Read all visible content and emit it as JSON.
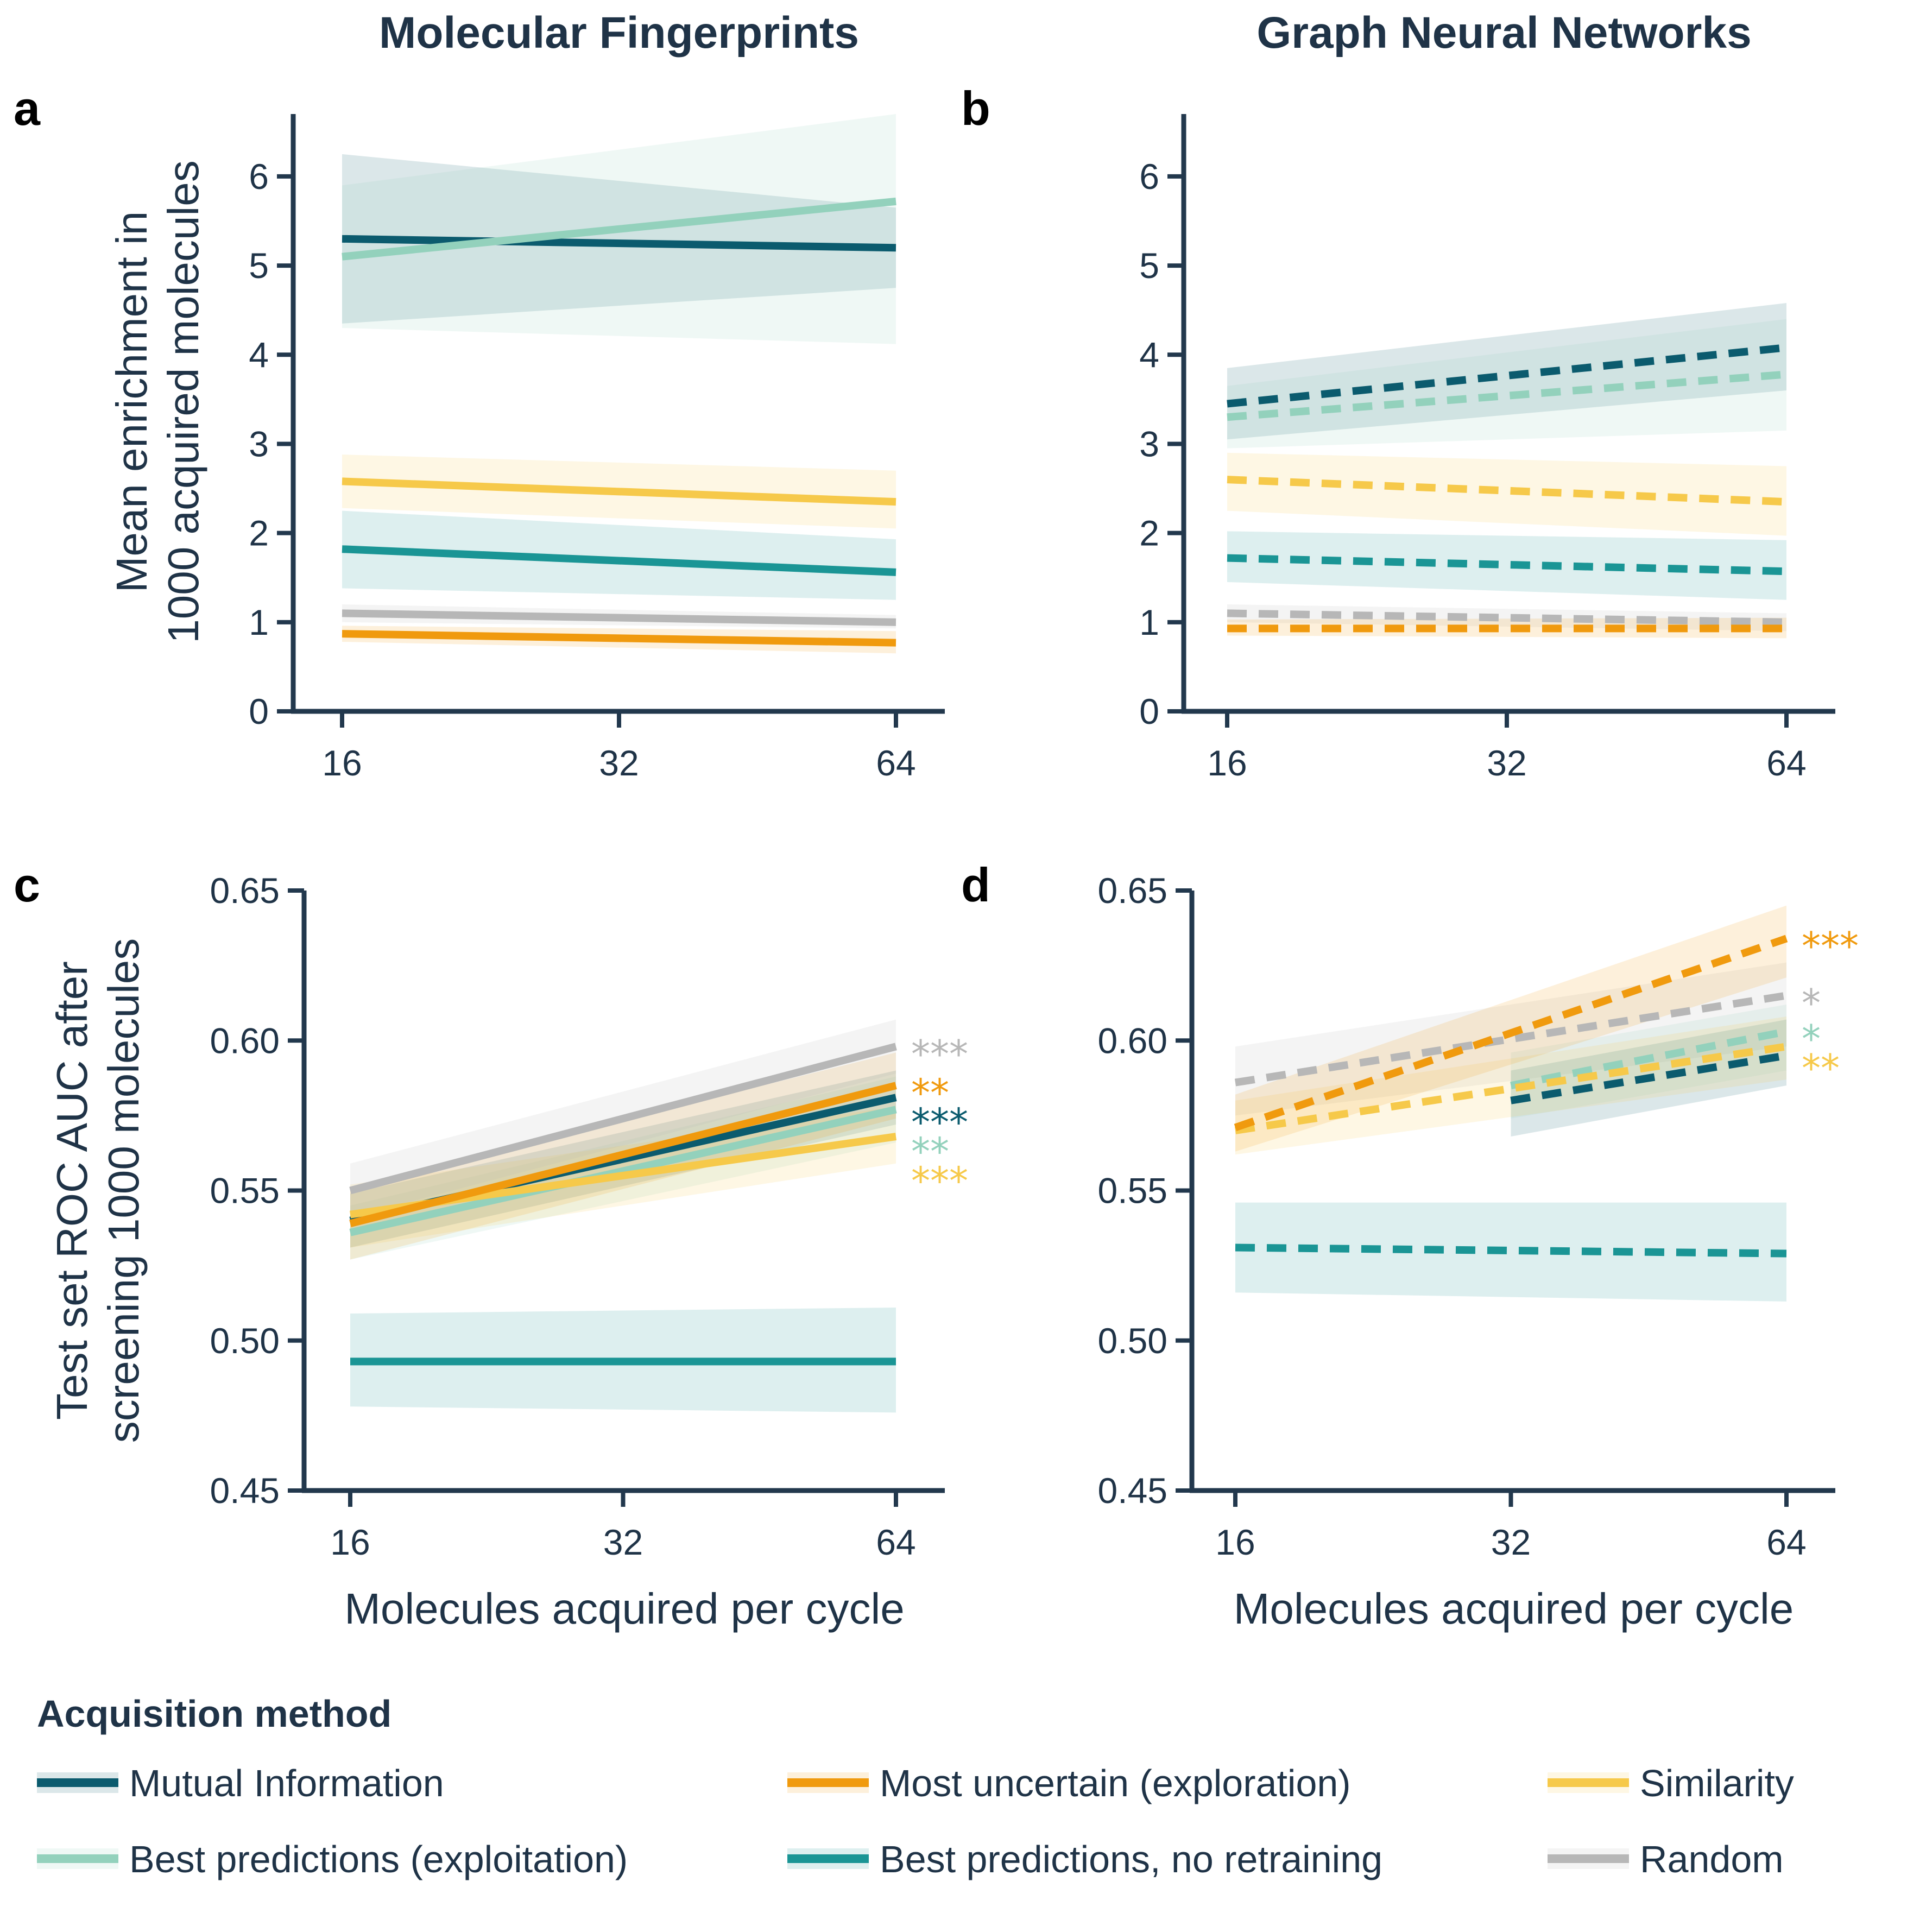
{
  "column_titles": [
    "Molecular Fingerprints",
    "Graph Neural Networks"
  ],
  "legend": {
    "title": "Acquisition method",
    "items": [
      {
        "key": "mi",
        "label": "Mutual Information",
        "color": "#0b5b6e"
      },
      {
        "key": "bp",
        "label": "Best predictions (exploitation)",
        "color": "#93d1bc"
      },
      {
        "key": "mu",
        "label": "Most uncertain (exploration)",
        "color": "#f09a0e"
      },
      {
        "key": "bpnr",
        "label": "Best predictions, no retraining",
        "color": "#1a9595"
      },
      {
        "key": "sim",
        "label": "Similarity",
        "color": "#f6c94a"
      },
      {
        "key": "rand",
        "label": "Random",
        "color": "#b7b7b7"
      }
    ]
  },
  "chart_data": [
    {
      "panel": "a",
      "type": "line",
      "line_style": "solid",
      "title": "Molecular Fingerprints",
      "xlabel": "",
      "ylabel": [
        "Mean enrichment in",
        "1000 acquired molecules"
      ],
      "xticks": [
        16,
        32,
        64
      ],
      "yticks": [
        "0",
        "1",
        "2",
        "3",
        "4",
        "5",
        "6"
      ],
      "ylim": [
        0,
        6.7
      ],
      "x": [
        16,
        64
      ],
      "series": [
        {
          "key": "mi",
          "values": [
            5.3,
            5.2
          ],
          "lo": [
            4.35,
            4.75
          ],
          "hi": [
            6.25,
            5.65
          ]
        },
        {
          "key": "bp",
          "values": [
            5.1,
            5.72
          ],
          "lo": [
            4.3,
            4.12
          ],
          "hi": [
            5.9,
            6.7
          ]
        },
        {
          "key": "sim",
          "values": [
            2.58,
            2.35
          ],
          "lo": [
            2.28,
            2.05
          ],
          "hi": [
            2.88,
            2.7
          ]
        },
        {
          "key": "bpnr",
          "values": [
            1.82,
            1.56
          ],
          "lo": [
            1.38,
            1.25
          ],
          "hi": [
            2.25,
            1.93
          ]
        },
        {
          "key": "rand",
          "values": [
            1.1,
            1.0
          ],
          "lo": [
            1.0,
            0.93
          ],
          "hi": [
            1.2,
            1.08
          ]
        },
        {
          "key": "mu",
          "values": [
            0.87,
            0.77
          ],
          "lo": [
            0.78,
            0.65
          ],
          "hi": [
            0.96,
            0.9
          ]
        }
      ],
      "significance": []
    },
    {
      "panel": "b",
      "type": "line",
      "line_style": "dashed",
      "title": "Graph Neural Networks",
      "xlabel": "",
      "ylabel": [],
      "xticks": [
        16,
        32,
        64
      ],
      "yticks": [
        "0",
        "1",
        "2",
        "3",
        "4",
        "5",
        "6"
      ],
      "ylim": [
        0,
        6.7
      ],
      "x": [
        16,
        64
      ],
      "series": [
        {
          "key": "mi",
          "values": [
            3.45,
            4.08
          ],
          "lo": [
            3.05,
            3.6
          ],
          "hi": [
            3.85,
            4.58
          ]
        },
        {
          "key": "bp",
          "values": [
            3.3,
            3.78
          ],
          "lo": [
            2.95,
            3.15
          ],
          "hi": [
            3.65,
            4.4
          ]
        },
        {
          "key": "sim",
          "values": [
            2.6,
            2.35
          ],
          "lo": [
            2.25,
            1.97
          ],
          "hi": [
            2.9,
            2.75
          ]
        },
        {
          "key": "bpnr",
          "values": [
            1.72,
            1.57
          ],
          "lo": [
            1.45,
            1.25
          ],
          "hi": [
            2.02,
            1.92
          ]
        },
        {
          "key": "rand",
          "values": [
            1.1,
            1.0
          ],
          "lo": [
            1.0,
            0.9
          ],
          "hi": [
            1.2,
            1.1
          ]
        },
        {
          "key": "mu",
          "values": [
            0.93,
            0.93
          ],
          "lo": [
            0.85,
            0.82
          ],
          "hi": [
            1.03,
            1.05
          ]
        }
      ],
      "significance": []
    },
    {
      "panel": "c",
      "type": "line",
      "line_style": "solid",
      "title": "",
      "xlabel": "Molecules acquired per cycle",
      "ylabel": [
        "Test set ROC AUC after",
        "screening 1000 molecules"
      ],
      "xticks": [
        16,
        32,
        64
      ],
      "yticks": [
        "0.45",
        "0.50",
        "0.55",
        "0.60",
        "0.65"
      ],
      "ylim": [
        0.45,
        0.65
      ],
      "x": [
        16,
        64
      ],
      "series": [
        {
          "key": "bpnr",
          "values": [
            0.493,
            0.493
          ],
          "lo": [
            0.478,
            0.476
          ],
          "hi": [
            0.509,
            0.511
          ]
        },
        {
          "key": "mi",
          "values": [
            0.54,
            0.581
          ],
          "lo": [
            0.531,
            0.572
          ],
          "hi": [
            0.549,
            0.59
          ]
        },
        {
          "key": "bp",
          "values": [
            0.536,
            0.577
          ],
          "lo": [
            0.527,
            0.566
          ],
          "hi": [
            0.545,
            0.588
          ]
        },
        {
          "key": "sim",
          "values": [
            0.542,
            0.568
          ],
          "lo": [
            0.531,
            0.559
          ],
          "hi": [
            0.552,
            0.578
          ]
        },
        {
          "key": "mu",
          "values": [
            0.539,
            0.585
          ],
          "lo": [
            0.527,
            0.574
          ],
          "hi": [
            0.551,
            0.596
          ]
        },
        {
          "key": "rand",
          "values": [
            0.55,
            0.598
          ],
          "lo": [
            0.541,
            0.589
          ],
          "hi": [
            0.559,
            0.607
          ]
        }
      ],
      "significance": [
        {
          "key": "rand",
          "text": "***"
        },
        {
          "key": "mu",
          "text": "**"
        },
        {
          "key": "mi",
          "text": "***"
        },
        {
          "key": "bp",
          "text": "**"
        },
        {
          "key": "sim",
          "text": "***"
        }
      ]
    },
    {
      "panel": "d",
      "type": "line",
      "line_style": "dashed",
      "title": "",
      "xlabel": "Molecules acquired per cycle",
      "ylabel": [],
      "xticks": [
        16,
        32,
        64
      ],
      "yticks": [
        "0.45",
        "0.50",
        "0.55",
        "0.60",
        "0.65"
      ],
      "ylim": [
        0.45,
        0.65
      ],
      "x": [
        16,
        64
      ],
      "series": [
        {
          "key": "bpnr",
          "values": [
            0.531,
            0.529
          ],
          "lo": [
            0.516,
            0.513
          ],
          "hi": [
            0.546,
            0.546
          ]
        },
        {
          "key": "rand",
          "values": [
            0.586,
            0.615
          ],
          "lo": [
            0.575,
            0.598
          ],
          "hi": [
            0.598,
            0.626
          ]
        },
        {
          "key": "mi",
          "x": [
            32,
            64
          ],
          "values": [
            0.58,
            0.595
          ],
          "lo": [
            0.568,
            0.585
          ],
          "hi": [
            0.59,
            0.607
          ]
        },
        {
          "key": "bp",
          "x": [
            32,
            64
          ],
          "values": [
            0.585,
            0.603
          ],
          "lo": [
            0.574,
            0.59
          ],
          "hi": [
            0.596,
            0.612
          ]
        },
        {
          "key": "sim",
          "values": [
            0.57,
            0.598
          ],
          "lo": [
            0.562,
            0.587
          ],
          "hi": [
            0.58,
            0.608
          ]
        },
        {
          "key": "mu",
          "values": [
            0.571,
            0.634
          ],
          "lo": [
            0.563,
            0.621
          ],
          "hi": [
            0.582,
            0.645
          ]
        }
      ],
      "significance": [
        {
          "key": "mu",
          "text": "***"
        },
        {
          "key": "rand",
          "text": "*"
        },
        {
          "key": "bp",
          "text": "*"
        },
        {
          "key": "sim",
          "text": "**"
        }
      ]
    }
  ]
}
